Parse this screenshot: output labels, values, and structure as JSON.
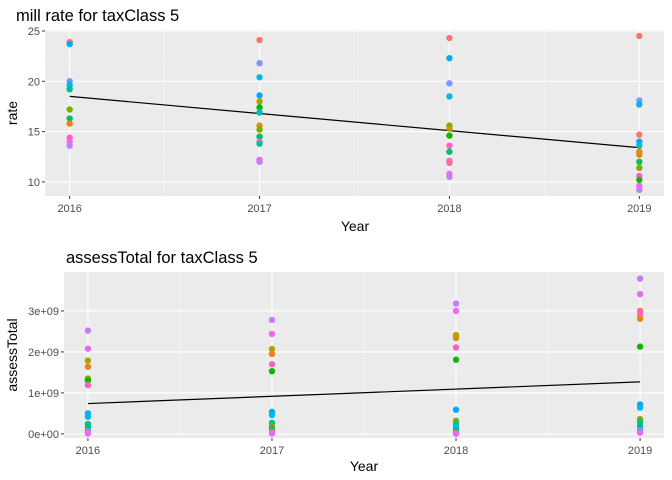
{
  "chart_data": [
    {
      "type": "scatter",
      "title": "mill rate for taxClass 5",
      "xlabel": "Year",
      "ylabel": "rate",
      "x_ticks": [
        "2016",
        "2017",
        "2018",
        "2019"
      ],
      "y_ticks": [
        10,
        15,
        20,
        25
      ],
      "y_tick_labels": [
        "10",
        "15",
        "20",
        "25"
      ],
      "xlim": [
        2015.87,
        2019.13
      ],
      "ylim": [
        8.6,
        25.1
      ],
      "grid": true,
      "points": [
        {
          "x": 2016,
          "y": 23.9,
          "color": "#F8766D"
        },
        {
          "x": 2016,
          "y": 23.7,
          "color": "#00A9FF"
        },
        {
          "x": 2016,
          "y": 20.0,
          "color": "#619CFF"
        },
        {
          "x": 2016,
          "y": 19.6,
          "color": "#00B8E7"
        },
        {
          "x": 2016,
          "y": 19.2,
          "color": "#00C19A"
        },
        {
          "x": 2016,
          "y": 17.2,
          "color": "#7CAE00"
        },
        {
          "x": 2016,
          "y": 16.3,
          "color": "#00BE67"
        },
        {
          "x": 2016,
          "y": 15.8,
          "color": "#E68613"
        },
        {
          "x": 2016,
          "y": 14.4,
          "color": "#FF61C3"
        },
        {
          "x": 2016,
          "y": 14.0,
          "color": "#ED68ED"
        },
        {
          "x": 2016,
          "y": 13.6,
          "color": "#C77CFF"
        },
        {
          "x": 2017,
          "y": 24.1,
          "color": "#F8766D"
        },
        {
          "x": 2017,
          "y": 21.8,
          "color": "#8494FF"
        },
        {
          "x": 2017,
          "y": 20.4,
          "color": "#00B8E7"
        },
        {
          "x": 2017,
          "y": 18.6,
          "color": "#00A9FF"
        },
        {
          "x": 2017,
          "y": 18.0,
          "color": "#ABA300"
        },
        {
          "x": 2017,
          "y": 17.4,
          "color": "#0CB702"
        },
        {
          "x": 2017,
          "y": 16.9,
          "color": "#00BFC4"
        },
        {
          "x": 2017,
          "y": 15.6,
          "color": "#CD9600"
        },
        {
          "x": 2017,
          "y": 15.2,
          "color": "#7CAE00"
        },
        {
          "x": 2017,
          "y": 14.5,
          "color": "#00BE67"
        },
        {
          "x": 2017,
          "y": 14.0,
          "color": "#FF61C3"
        },
        {
          "x": 2017,
          "y": 13.8,
          "color": "#00C19A"
        },
        {
          "x": 2017,
          "y": 12.2,
          "color": "#ED68ED"
        },
        {
          "x": 2017,
          "y": 12.0,
          "color": "#C77CFF"
        },
        {
          "x": 2018,
          "y": 24.3,
          "color": "#F8766D"
        },
        {
          "x": 2018,
          "y": 22.3,
          "color": "#00A9FF"
        },
        {
          "x": 2018,
          "y": 19.8,
          "color": "#8494FF"
        },
        {
          "x": 2018,
          "y": 18.5,
          "color": "#00B8E7"
        },
        {
          "x": 2018,
          "y": 15.6,
          "color": "#7CAE00"
        },
        {
          "x": 2018,
          "y": 15.3,
          "color": "#CD9600"
        },
        {
          "x": 2018,
          "y": 14.6,
          "color": "#0CB702"
        },
        {
          "x": 2018,
          "y": 13.6,
          "color": "#FF61C3"
        },
        {
          "x": 2018,
          "y": 13.0,
          "color": "#00BE67"
        },
        {
          "x": 2018,
          "y": 12.1,
          "color": "#ED68ED"
        },
        {
          "x": 2018,
          "y": 11.9,
          "color": "#FF6A98"
        },
        {
          "x": 2018,
          "y": 10.8,
          "color": "#E76BF3"
        },
        {
          "x": 2018,
          "y": 10.5,
          "color": "#C77CFF"
        },
        {
          "x": 2019,
          "y": 24.5,
          "color": "#F8766D"
        },
        {
          "x": 2019,
          "y": 18.1,
          "color": "#8494FF"
        },
        {
          "x": 2019,
          "y": 17.7,
          "color": "#00B8E7"
        },
        {
          "x": 2019,
          "y": 14.7,
          "color": "#F8766D"
        },
        {
          "x": 2019,
          "y": 14.0,
          "color": "#00A9FF"
        },
        {
          "x": 2019,
          "y": 13.6,
          "color": "#00BFC4"
        },
        {
          "x": 2019,
          "y": 13.0,
          "color": "#CD9600"
        },
        {
          "x": 2019,
          "y": 12.7,
          "color": "#E68613"
        },
        {
          "x": 2019,
          "y": 12.0,
          "color": "#00BE67"
        },
        {
          "x": 2019,
          "y": 11.4,
          "color": "#7CAE00"
        },
        {
          "x": 2019,
          "y": 10.6,
          "color": "#FF61C3"
        },
        {
          "x": 2019,
          "y": 10.2,
          "color": "#0CB702"
        },
        {
          "x": 2019,
          "y": 9.6,
          "color": "#ED68ED"
        },
        {
          "x": 2019,
          "y": 9.2,
          "color": "#C77CFF"
        }
      ],
      "trend_line": {
        "x": [
          2016,
          2019
        ],
        "y": [
          18.5,
          13.4
        ],
        "color": "#000000"
      }
    },
    {
      "type": "scatter",
      "title": "assessTotal for taxClass 5",
      "xlabel": "Year",
      "ylabel": "assessTotal",
      "x_ticks": [
        "2016",
        "2017",
        "2018",
        "2019"
      ],
      "y_ticks": [
        0,
        1000000000,
        2000000000,
        3000000000
      ],
      "y_tick_labels": [
        "0e+00",
        "1e+09",
        "2e+09",
        "3e+09"
      ],
      "xlim": [
        2015.87,
        2019.13
      ],
      "ylim": [
        -100000000,
        3950000000
      ],
      "grid": true,
      "points": [
        {
          "x": 2016,
          "y": 2520000000,
          "color": "#C77CFF"
        },
        {
          "x": 2016,
          "y": 2080000000,
          "color": "#ED68ED"
        },
        {
          "x": 2016,
          "y": 1790000000,
          "color": "#ABA300"
        },
        {
          "x": 2016,
          "y": 1640000000,
          "color": "#E68613"
        },
        {
          "x": 2016,
          "y": 1350000000,
          "color": "#7CAE00"
        },
        {
          "x": 2016,
          "y": 1300000000,
          "color": "#0CB702"
        },
        {
          "x": 2016,
          "y": 1190000000,
          "color": "#FF61C3"
        },
        {
          "x": 2016,
          "y": 500000000,
          "color": "#00A9FF"
        },
        {
          "x": 2016,
          "y": 420000000,
          "color": "#00B8E7"
        },
        {
          "x": 2016,
          "y": 240000000,
          "color": "#00C19A"
        },
        {
          "x": 2016,
          "y": 160000000,
          "color": "#00BE67"
        },
        {
          "x": 2016,
          "y": 80000000,
          "color": "#619CFF"
        },
        {
          "x": 2016,
          "y": 30000000,
          "color": "#F8766D"
        },
        {
          "x": 2016,
          "y": 10000000,
          "color": "#E76BF3"
        },
        {
          "x": 2017,
          "y": 2780000000,
          "color": "#C77CFF"
        },
        {
          "x": 2017,
          "y": 2440000000,
          "color": "#ED68ED"
        },
        {
          "x": 2017,
          "y": 2070000000,
          "color": "#ABA300"
        },
        {
          "x": 2017,
          "y": 1950000000,
          "color": "#E68613"
        },
        {
          "x": 2017,
          "y": 1700000000,
          "color": "#FF61C3"
        },
        {
          "x": 2017,
          "y": 1530000000,
          "color": "#0CB702"
        },
        {
          "x": 2017,
          "y": 540000000,
          "color": "#00A9FF"
        },
        {
          "x": 2017,
          "y": 460000000,
          "color": "#00B8E7"
        },
        {
          "x": 2017,
          "y": 270000000,
          "color": "#00C19A"
        },
        {
          "x": 2017,
          "y": 190000000,
          "color": "#7CAE00"
        },
        {
          "x": 2017,
          "y": 110000000,
          "color": "#00BE67"
        },
        {
          "x": 2017,
          "y": 50000000,
          "color": "#F8766D"
        },
        {
          "x": 2017,
          "y": 10000000,
          "color": "#E76BF3"
        },
        {
          "x": 2018,
          "y": 3180000000,
          "color": "#C77CFF"
        },
        {
          "x": 2018,
          "y": 3000000000,
          "color": "#E76BF3"
        },
        {
          "x": 2018,
          "y": 2410000000,
          "color": "#ABA300"
        },
        {
          "x": 2018,
          "y": 2340000000,
          "color": "#CD9600"
        },
        {
          "x": 2018,
          "y": 2110000000,
          "color": "#FF61C3"
        },
        {
          "x": 2018,
          "y": 1810000000,
          "color": "#0CB702"
        },
        {
          "x": 2018,
          "y": 590000000,
          "color": "#00A9FF"
        },
        {
          "x": 2018,
          "y": 320000000,
          "color": "#7CAE00"
        },
        {
          "x": 2018,
          "y": 240000000,
          "color": "#00C19A"
        },
        {
          "x": 2018,
          "y": 150000000,
          "color": "#00B8E7"
        },
        {
          "x": 2018,
          "y": 80000000,
          "color": "#00BE67"
        },
        {
          "x": 2018,
          "y": 20000000,
          "color": "#F8766D"
        },
        {
          "x": 2018,
          "y": 5000000,
          "color": "#ED68ED"
        },
        {
          "x": 2019,
          "y": 3790000000,
          "color": "#C77CFF"
        },
        {
          "x": 2019,
          "y": 3410000000,
          "color": "#E76BF3"
        },
        {
          "x": 2019,
          "y": 3000000000,
          "color": "#F8766D"
        },
        {
          "x": 2019,
          "y": 2920000000,
          "color": "#FF61C3"
        },
        {
          "x": 2019,
          "y": 2810000000,
          "color": "#E68613"
        },
        {
          "x": 2019,
          "y": 2130000000,
          "color": "#0CB702"
        },
        {
          "x": 2019,
          "y": 720000000,
          "color": "#00A9FF"
        },
        {
          "x": 2019,
          "y": 640000000,
          "color": "#00B8E7"
        },
        {
          "x": 2019,
          "y": 360000000,
          "color": "#7CAE00"
        },
        {
          "x": 2019,
          "y": 280000000,
          "color": "#00C19A"
        },
        {
          "x": 2019,
          "y": 180000000,
          "color": "#00BE67"
        },
        {
          "x": 2019,
          "y": 100000000,
          "color": "#619CFF"
        },
        {
          "x": 2019,
          "y": 30000000,
          "color": "#ED68ED"
        }
      ],
      "trend_line": {
        "x": [
          2016,
          2019
        ],
        "y": [
          740000000,
          1270000000
        ],
        "color": "#000000"
      }
    }
  ],
  "colors": {
    "panel_background": "#EBEBEB",
    "grid_major": "#FFFFFF",
    "grid_minor": "#F5F5F5",
    "tick_text": "#4D4D4D"
  }
}
